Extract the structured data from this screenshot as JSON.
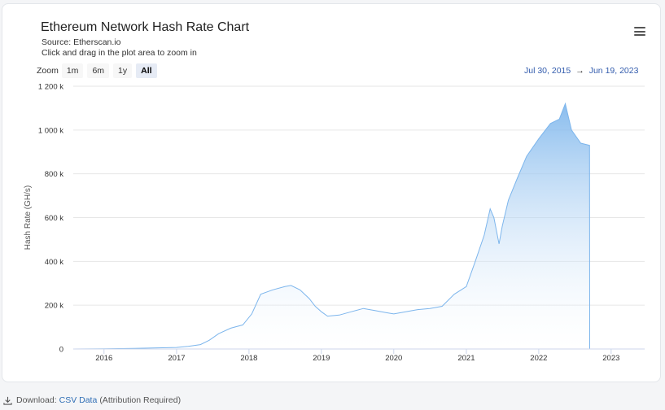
{
  "title": "Ethereum Network Hash Rate Chart",
  "subtitle_source": "Source: Etherscan.io",
  "subtitle_hint": "Click and drag in the plot area to zoom in",
  "zoom": {
    "label": "Zoom",
    "buttons": [
      "1m",
      "6m",
      "1y",
      "All"
    ],
    "active": "All"
  },
  "range": {
    "from": "Jul 30, 2015",
    "arrow": "→",
    "to": "Jun 19, 2023"
  },
  "menu_icon": "hamburger-menu-icon",
  "footer": {
    "icon": "download-icon",
    "prefix": "Download:",
    "link": "CSV Data",
    "suffix": "(Attribution Required)"
  },
  "colors": {
    "line": "#7cb5ec",
    "fill_top": "#8cc0ee",
    "fill_bottom": "#ffffff",
    "range_text": "#335cad"
  },
  "chart_data": {
    "type": "area",
    "title": "Ethereum Network Hash Rate Chart",
    "ylabel": "Hash Rate (GH/s)",
    "xlabel": "",
    "ylim": [
      0,
      1200000
    ],
    "xlim": [
      "2015-07-30",
      "2023-06-19"
    ],
    "yticks": [
      0,
      200000,
      400000,
      600000,
      800000,
      1000000,
      1200000
    ],
    "ytick_labels": [
      "0",
      "200 k",
      "400 k",
      "600 k",
      "800 k",
      "1 000 k",
      "1 200 k"
    ],
    "xticks": [
      "2016-01-01",
      "2017-01-01",
      "2018-01-01",
      "2019-01-01",
      "2020-01-01",
      "2021-01-01",
      "2022-01-01",
      "2023-01-01"
    ],
    "xtick_labels": [
      "2016",
      "2017",
      "2018",
      "2019",
      "2020",
      "2021",
      "2022",
      "2023"
    ],
    "grid": true,
    "legend": false,
    "series": [
      {
        "x": [
          "2015-07-30",
          "2016-01-01",
          "2016-06-01",
          "2017-01-01",
          "2017-03-01",
          "2017-05-01",
          "2017-06-15",
          "2017-08-01",
          "2017-10-01",
          "2017-12-01",
          "2018-01-15",
          "2018-03-01",
          "2018-05-01",
          "2018-07-01",
          "2018-08-01",
          "2018-09-15",
          "2018-11-01",
          "2018-12-01",
          "2019-01-01",
          "2019-02-01",
          "2019-04-01",
          "2019-06-01",
          "2019-08-01",
          "2019-10-01",
          "2019-12-01",
          "2020-01-01",
          "2020-03-01",
          "2020-05-01",
          "2020-07-01",
          "2020-09-01",
          "2020-11-01",
          "2021-01-01",
          "2021-02-15",
          "2021-04-01",
          "2021-05-01",
          "2021-05-20",
          "2021-06-15",
          "2021-07-01",
          "2021-08-01",
          "2021-09-15",
          "2021-11-01",
          "2022-01-01",
          "2022-03-01",
          "2022-04-15",
          "2022-05-15",
          "2022-06-15",
          "2022-08-01",
          "2022-09-14",
          "2022-09-15",
          "2023-06-19"
        ],
        "values": [
          0,
          1000,
          3000,
          7000,
          12000,
          20000,
          40000,
          70000,
          95000,
          110000,
          160000,
          250000,
          270000,
          285000,
          290000,
          270000,
          230000,
          195000,
          170000,
          150000,
          155000,
          170000,
          185000,
          175000,
          165000,
          160000,
          170000,
          180000,
          185000,
          195000,
          250000,
          285000,
          400000,
          520000,
          640000,
          600000,
          480000,
          560000,
          680000,
          780000,
          880000,
          960000,
          1030000,
          1050000,
          1120000,
          1000000,
          940000,
          930000,
          0,
          0
        ]
      }
    ]
  }
}
